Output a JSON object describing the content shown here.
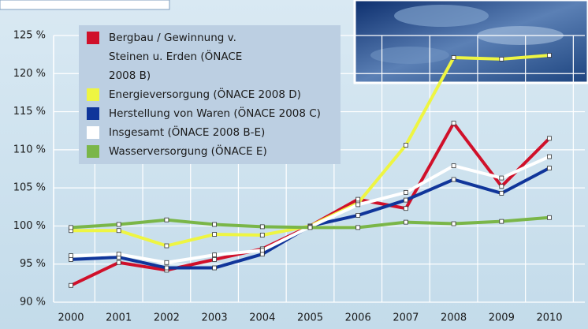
{
  "chart_data": {
    "type": "line",
    "categories": [
      "2000",
      "2001",
      "2002",
      "2003",
      "2004",
      "2005",
      "2006",
      "2007",
      "2008",
      "2009",
      "2010"
    ],
    "series": [
      {
        "name": "Bergbau / Gewinnung v. Steinen u. Erden (ÖNACE 2008 B)",
        "color": "#d0102a",
        "values": [
          92.2,
          95.2,
          94.2,
          95.6,
          97,
          100,
          103.5,
          102.3,
          113.5,
          105.2,
          111.5
        ]
      },
      {
        "name": "Energieversorgung (ÖNACE 2008 D)",
        "color": "#eef542",
        "values": [
          99.4,
          99.4,
          97.4,
          98.9,
          98.8,
          100,
          103,
          110.6,
          122.1,
          121.9,
          122.4
        ]
      },
      {
        "name": "Herstellung von Waren (ÖNACE 2008 C)",
        "color": "#10359a",
        "values": [
          95.6,
          95.9,
          94.5,
          94.5,
          96.3,
          100,
          101.4,
          103.4,
          106.1,
          104.3,
          107.6
        ]
      },
      {
        "name": "Insgesamt (ÖNACE 2008 B-E)",
        "color": "#ffffff",
        "values": [
          96.1,
          96.3,
          95.2,
          96.2,
          96.8,
          99.9,
          102.8,
          104.4,
          107.9,
          106.3,
          109.1
        ]
      },
      {
        "name": "Wasserversorgung (ÖNACE E)",
        "color": "#7ab648",
        "values": [
          99.8,
          100.2,
          100.8,
          100.2,
          99.9,
          99.8,
          99.8,
          100.5,
          100.3,
          100.6,
          101.1
        ]
      }
    ],
    "ylim": [
      90,
      125
    ],
    "yticks": [
      {
        "value": 90,
        "label": "90 %"
      },
      {
        "value": 95,
        "label": "95 %"
      },
      {
        "value": 100,
        "label": "100 %"
      },
      {
        "value": 105,
        "label": "105 %"
      },
      {
        "value": 110,
        "label": "110 %"
      },
      {
        "value": 115,
        "label": "115 %"
      },
      {
        "value": 120,
        "label": "120 %"
      },
      {
        "value": 125,
        "label": "125 %"
      }
    ],
    "grid": true
  }
}
